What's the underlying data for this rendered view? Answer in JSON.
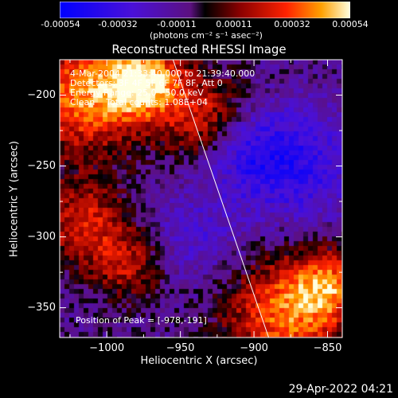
{
  "colorbar": {
    "ticks": [
      "-0.00054",
      "-0.00032",
      "-0.00011",
      "0.00011",
      "0.00032",
      "0.00054"
    ],
    "units": "(photons cm⁻² s⁻¹ asec⁻²)"
  },
  "chart_data": {
    "type": "heatmap",
    "title": "Reconstructed RHESSI Image",
    "xlabel": "Heliocentric X (arcsec)",
    "ylabel": "Heliocentric Y (arcsec)",
    "xlim": [
      -1032,
      -840
    ],
    "ylim": [
      -371,
      -175
    ],
    "xticks": [
      -1000,
      -950,
      -900,
      -850
    ],
    "yticks": [
      -200,
      -250,
      -300,
      -350
    ],
    "color_range": [
      -0.00054,
      0.00054
    ],
    "limb_line": [
      [
        -955,
        -175
      ],
      [
        -890,
        -371
      ]
    ],
    "peak_position": [
      -978,
      -191
    ],
    "annotations": {
      "time": "4-Mar-2004 21:33:40.000 to 21:39:40.000",
      "detectors": "Detectors: 3F 4F 5F 6F 7F 8F, Att 0",
      "energy": "Energy Range: 25.0 - 50.0 keV",
      "method": "Clean    Total counts: 1.08E+04",
      "peak": "Position of Peak = [-978,-191]"
    }
  },
  "timestamp": "29-Apr-2022 04:21"
}
